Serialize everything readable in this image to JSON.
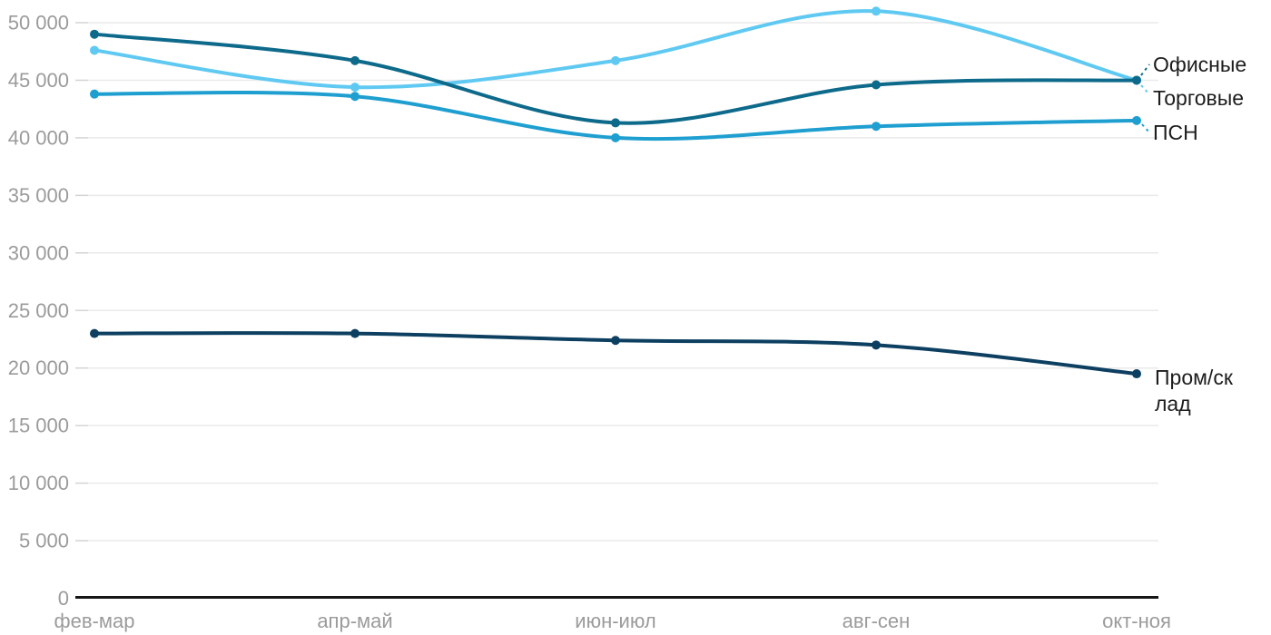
{
  "chart_data": {
    "type": "line",
    "title": "",
    "categories": [
      "фев-мар",
      "апр-май",
      "июн-июл",
      "авг-сен",
      "окт-ноя"
    ],
    "series": [
      {
        "name": "Торговые",
        "color": "#5fc9f2",
        "values": [
          47600,
          44400,
          46700,
          51000,
          45000
        ]
      },
      {
        "name": "ПСН",
        "color": "#1f9fd0",
        "values": [
          43800,
          43600,
          40000,
          41000,
          41500
        ]
      },
      {
        "name": "Офисные",
        "color": "#0e6a8b",
        "values": [
          49000,
          46700,
          41300,
          44600,
          45000
        ]
      },
      {
        "name": "Пром/склад",
        "color": "#0d3f61",
        "values": [
          23000,
          23000,
          22400,
          22000,
          19500
        ]
      }
    ],
    "ylim": [
      0,
      50000
    ],
    "ytick_step": 5000,
    "ytick_labels": [
      "0",
      "5 000",
      "10 000",
      "15 000",
      "20 000",
      "25 000",
      "30 000",
      "35 000",
      "40 000",
      "45 000",
      "50 000"
    ],
    "grid": true,
    "legend_position": "right-edge-labels"
  },
  "colors": {
    "grid": "#eaeaea",
    "tick": "#d4d4d4",
    "axis": "#161616",
    "axis_label": "#9b9b9b",
    "series_label": "#1d1d1d",
    "background": "#ffffff"
  }
}
